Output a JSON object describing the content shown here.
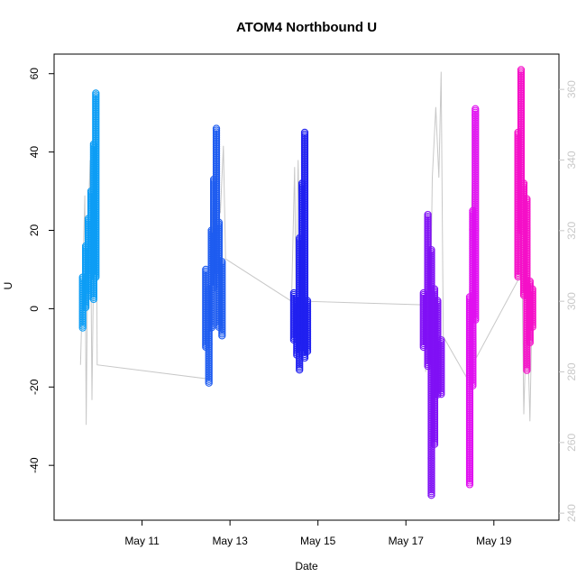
{
  "chart_data": {
    "type": "scatter",
    "title": "ATOM4 Northbound U",
    "xlabel": "Date",
    "ylabel": "U",
    "x_ticks": [
      "May 11",
      "May 13",
      "May 15",
      "May 17",
      "May 19"
    ],
    "ylim": [
      -54,
      65
    ],
    "y_ticks": [
      -40,
      -20,
      0,
      20,
      40,
      60
    ],
    "y2lim": [
      238,
      370
    ],
    "y2_ticks": [
      240,
      260,
      280,
      300,
      320,
      340,
      360
    ],
    "grid": false,
    "secondary_line_color": "#c8c8c8",
    "series": [
      {
        "color": "#0d9df5",
        "segments": [
          {
            "x": 9.65,
            "lo": -5,
            "hi": 8
          },
          {
            "x": 9.72,
            "lo": 0,
            "hi": 16
          },
          {
            "x": 9.78,
            "lo": 3,
            "hi": 23
          },
          {
            "x": 9.84,
            "lo": 8,
            "hi": 30
          },
          {
            "x": 9.9,
            "lo": 2,
            "hi": 42
          },
          {
            "x": 9.95,
            "lo": 8,
            "hi": 55
          }
        ]
      },
      {
        "color": "#1e5cf0",
        "segments": [
          {
            "x": 12.45,
            "lo": -10,
            "hi": 10
          },
          {
            "x": 12.52,
            "lo": -19,
            "hi": 5
          },
          {
            "x": 12.58,
            "lo": -5,
            "hi": 20
          },
          {
            "x": 12.63,
            "lo": 5,
            "hi": 33
          },
          {
            "x": 12.69,
            "lo": 8,
            "hi": 46
          },
          {
            "x": 12.75,
            "lo": -5,
            "hi": 22
          },
          {
            "x": 12.82,
            "lo": -7,
            "hi": 12
          }
        ]
      },
      {
        "color": "#2020f0",
        "segments": [
          {
            "x": 14.45,
            "lo": -8,
            "hi": 4
          },
          {
            "x": 14.52,
            "lo": -12,
            "hi": 2
          },
          {
            "x": 14.58,
            "lo": -16,
            "hi": 18
          },
          {
            "x": 14.64,
            "lo": -10,
            "hi": 32
          },
          {
            "x": 14.7,
            "lo": -13,
            "hi": 45
          },
          {
            "x": 14.76,
            "lo": -11,
            "hi": 2
          }
        ]
      },
      {
        "color": "#8010f5",
        "segments": [
          {
            "x": 17.4,
            "lo": -10,
            "hi": 4
          },
          {
            "x": 17.5,
            "lo": -15,
            "hi": 24
          },
          {
            "x": 17.58,
            "lo": -48,
            "hi": 15
          },
          {
            "x": 17.65,
            "lo": -35,
            "hi": 5
          },
          {
            "x": 17.72,
            "lo": -22,
            "hi": 2
          },
          {
            "x": 17.8,
            "lo": -22,
            "hi": -8
          }
        ]
      },
      {
        "color": "#e010f0",
        "segments": [
          {
            "x": 18.45,
            "lo": -45,
            "hi": 3
          },
          {
            "x": 18.52,
            "lo": -20,
            "hi": 25
          },
          {
            "x": 18.58,
            "lo": -3,
            "hi": 51
          }
        ]
      },
      {
        "color": "#f510c8",
        "segments": [
          {
            "x": 19.55,
            "lo": 8,
            "hi": 45
          },
          {
            "x": 19.62,
            "lo": 20,
            "hi": 61
          },
          {
            "x": 19.68,
            "lo": 3,
            "hi": 32
          },
          {
            "x": 19.75,
            "lo": -16,
            "hi": 28
          },
          {
            "x": 19.82,
            "lo": -9,
            "hi": 7
          },
          {
            "x": 19.88,
            "lo": -5,
            "hi": 5
          }
        ]
      }
    ],
    "secondary_line": [
      {
        "x": 9.6,
        "y": 282
      },
      {
        "x": 9.65,
        "y": 305
      },
      {
        "x": 9.7,
        "y": 330
      },
      {
        "x": 9.73,
        "y": 265
      },
      {
        "x": 9.77,
        "y": 320
      },
      {
        "x": 9.82,
        "y": 340
      },
      {
        "x": 9.86,
        "y": 272
      },
      {
        "x": 9.9,
        "y": 312
      },
      {
        "x": 9.95,
        "y": 360
      },
      {
        "x": 9.98,
        "y": 282
      },
      {
        "x": 12.5,
        "y": 278
      },
      {
        "x": 12.6,
        "y": 325
      },
      {
        "x": 12.7,
        "y": 342
      },
      {
        "x": 12.78,
        "y": 325
      },
      {
        "x": 12.85,
        "y": 344
      },
      {
        "x": 12.9,
        "y": 312
      },
      {
        "x": 14.4,
        "y": 300
      },
      {
        "x": 14.47,
        "y": 338
      },
      {
        "x": 14.5,
        "y": 300
      },
      {
        "x": 14.55,
        "y": 340
      },
      {
        "x": 14.6,
        "y": 302
      },
      {
        "x": 14.65,
        "y": 346
      },
      {
        "x": 14.72,
        "y": 300
      },
      {
        "x": 17.4,
        "y": 299
      },
      {
        "x": 17.45,
        "y": 280
      },
      {
        "x": 17.5,
        "y": 325
      },
      {
        "x": 17.55,
        "y": 290
      },
      {
        "x": 17.6,
        "y": 335
      },
      {
        "x": 17.68,
        "y": 355
      },
      {
        "x": 17.75,
        "y": 335
      },
      {
        "x": 17.8,
        "y": 365
      },
      {
        "x": 17.85,
        "y": 290
      },
      {
        "x": 18.4,
        "y": 278
      },
      {
        "x": 18.5,
        "y": 330
      },
      {
        "x": 18.55,
        "y": 350
      },
      {
        "x": 18.6,
        "y": 284
      },
      {
        "x": 19.55,
        "y": 306
      },
      {
        "x": 19.62,
        "y": 330
      },
      {
        "x": 19.68,
        "y": 268
      },
      {
        "x": 19.75,
        "y": 300
      },
      {
        "x": 19.82,
        "y": 266
      },
      {
        "x": 19.88,
        "y": 305
      }
    ]
  }
}
